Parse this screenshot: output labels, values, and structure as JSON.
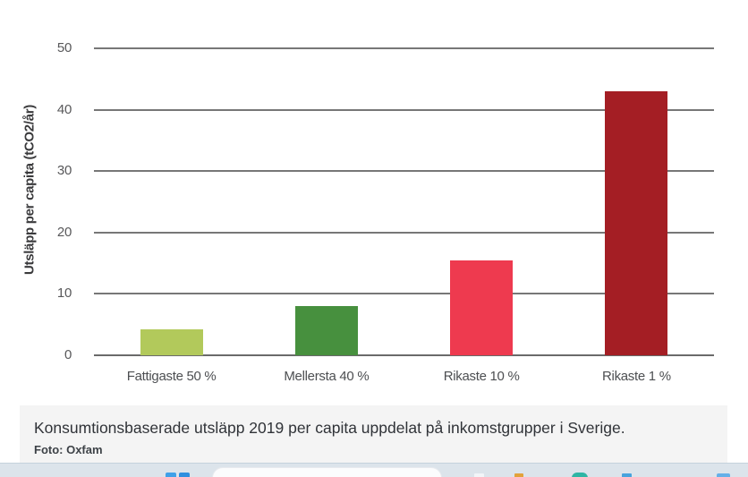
{
  "chart_data": {
    "type": "bar",
    "title": "",
    "categories": [
      "Fattigaste 50 %",
      "Mellersta 40 %",
      "Rikaste 10 %",
      "Rikaste 1 %"
    ],
    "values": [
      4.3,
      8,
      15.5,
      43
    ],
    "bar_colors": [
      "#b2c95b",
      "#47903e",
      "#ee3a4f",
      "#a41e24"
    ],
    "xlabel": "",
    "ylabel": "Utsläpp per capita (tCO2/år)",
    "ylim": [
      0,
      50
    ],
    "yticks": [
      0,
      10,
      20,
      30,
      40,
      50
    ],
    "grid": "horizontal-only",
    "gridline_color": "#777777",
    "legend": "none"
  },
  "caption": {
    "text": "Konsumtionsbaserade utsläpp 2019 per capita uppdelat på inkomstgrupper i Sverige.",
    "credit": "Foto: Oxfam"
  },
  "taskbar": {
    "background_color": "#dce4eb",
    "icons": [
      {
        "name": "start-icon",
        "color": "#3fa0e8"
      },
      {
        "name": "search-box",
        "value": ""
      },
      {
        "name": "app-icon-white",
        "color": "#f2f5f8"
      },
      {
        "name": "app-icon-orange",
        "color": "#e2a23b"
      },
      {
        "name": "app-icon-teal",
        "color": "#2eb5a4"
      },
      {
        "name": "app-icon-blue",
        "color": "#48a3dd"
      },
      {
        "name": "app-icon-blue-2",
        "color": "#65b0e8"
      }
    ]
  }
}
